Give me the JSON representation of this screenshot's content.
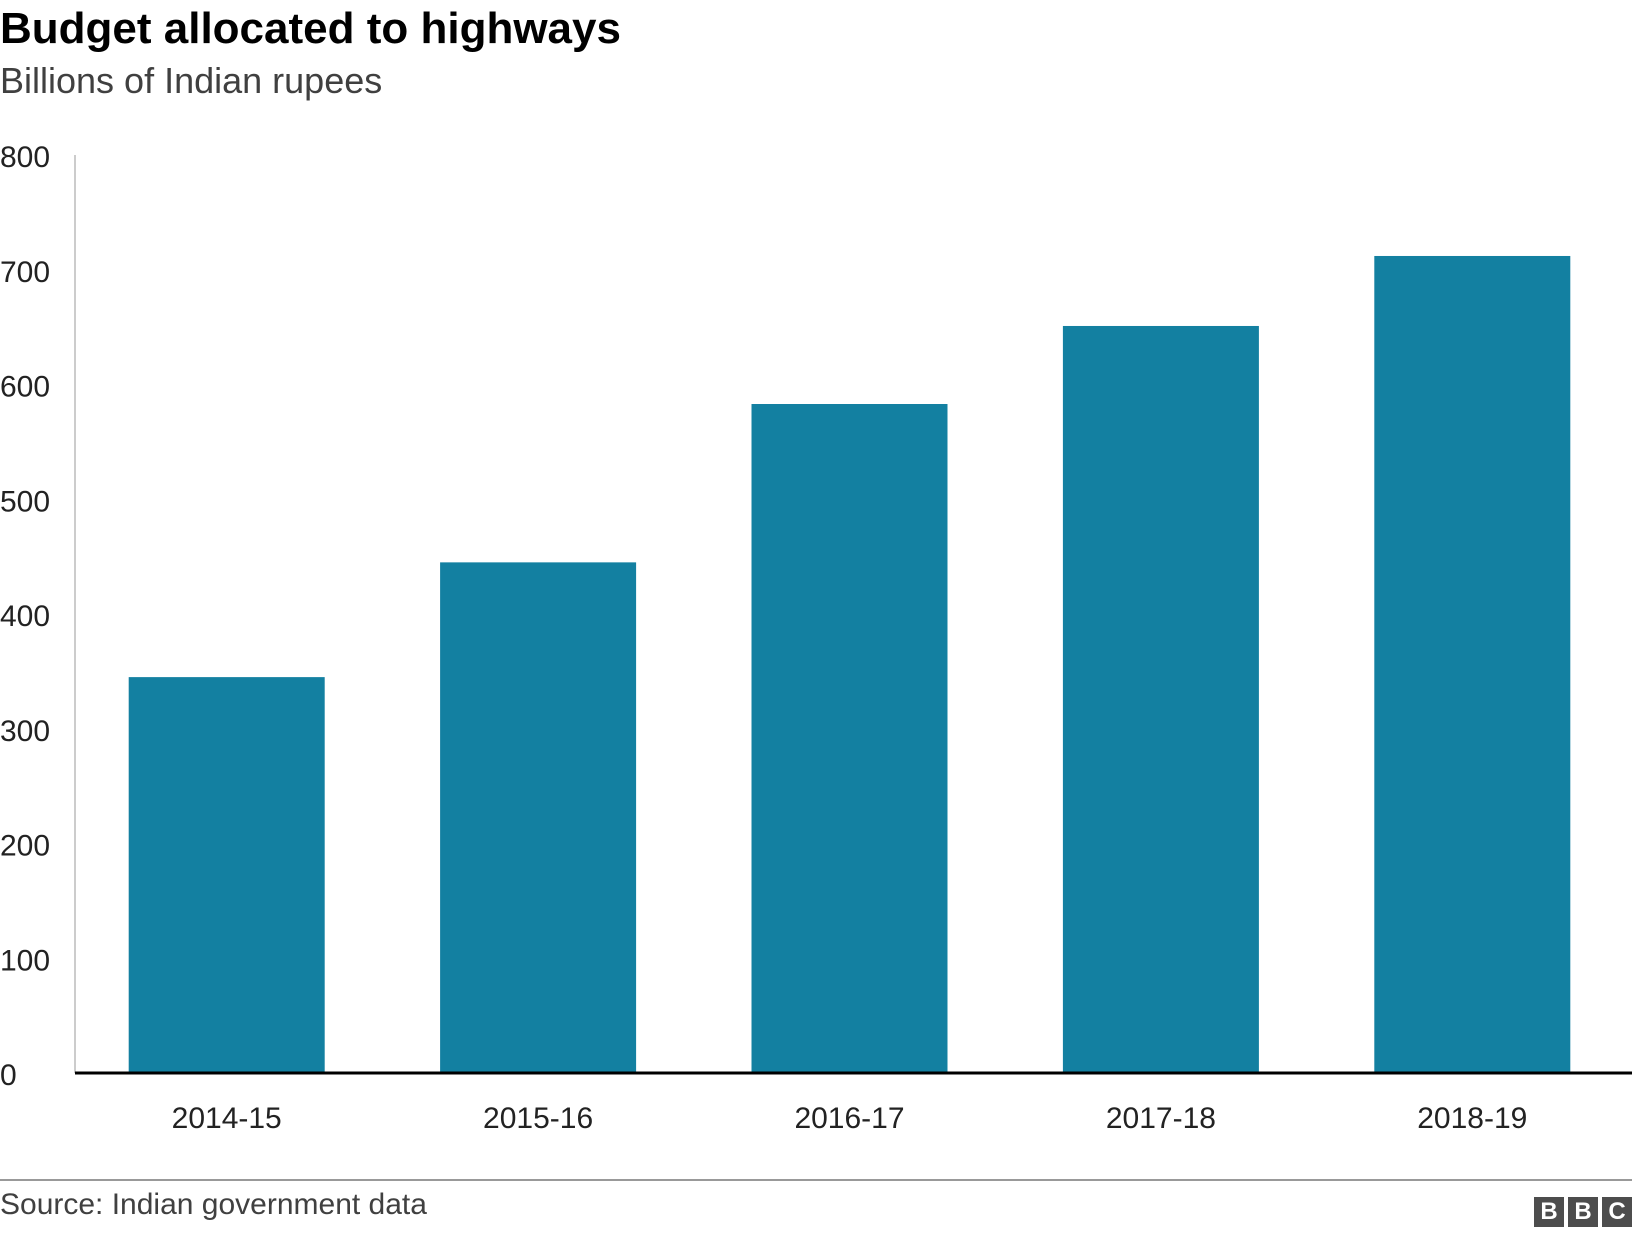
{
  "header": {
    "title": "Budget allocated to highways",
    "subtitle": "Billions of Indian rupees"
  },
  "footer": {
    "source": "Source: Indian government data",
    "logo_letters": [
      "B",
      "B",
      "C"
    ]
  },
  "colors": {
    "bar": "#1380a1",
    "axis": "#000000",
    "grid": "#cccccc"
  },
  "chart_data": {
    "type": "bar",
    "title": "Budget allocated to highways",
    "subtitle": "Billions of Indian rupees",
    "categories": [
      "2014-15",
      "2015-16",
      "2016-17",
      "2017-18",
      "2018-19"
    ],
    "values": [
      345,
      445,
      583,
      651,
      712
    ],
    "ylim": [
      0,
      800
    ],
    "yticks": [
      0,
      100,
      200,
      300,
      400,
      500,
      600,
      700,
      800
    ],
    "xlabel": "",
    "ylabel": "",
    "grid": false,
    "legend": "none"
  }
}
